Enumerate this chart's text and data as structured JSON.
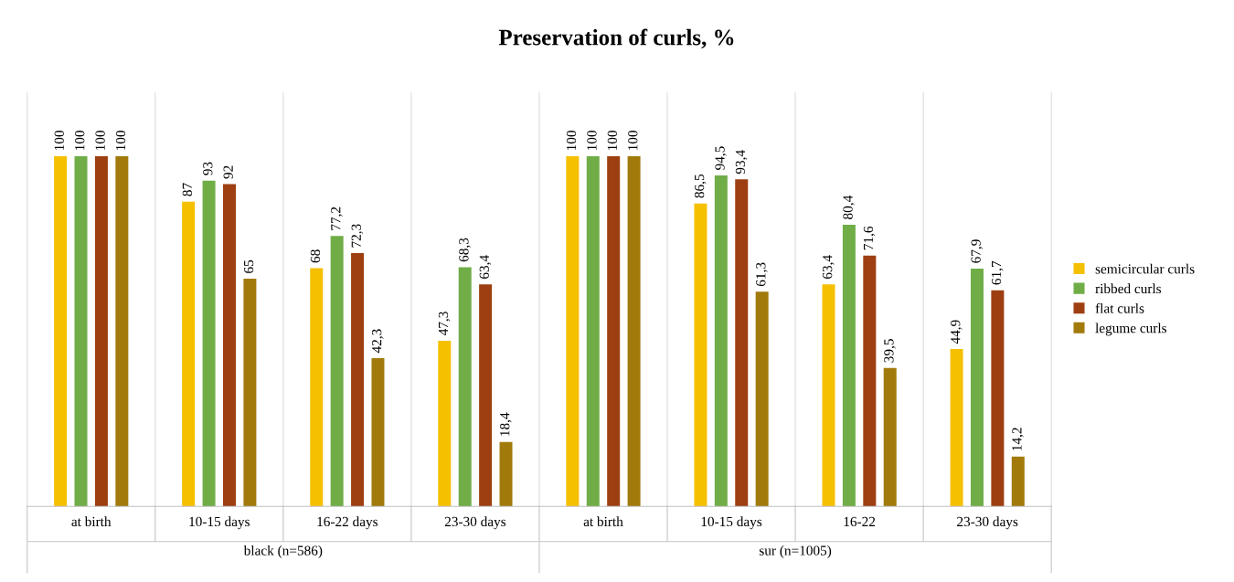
{
  "chart_data": {
    "type": "bar",
    "title": "Preservation of curls, %",
    "categories": [
      "at birth",
      "10-15 days",
      "16-22 days",
      "23-30 days",
      "at birth",
      "10-15 days",
      "16-22",
      "23-30 days"
    ],
    "series": [
      {
        "name": "semicircular curls",
        "color": "#f5c000",
        "values": [
          100,
          87,
          68,
          47.3,
          100,
          86.5,
          63.4,
          44.9
        ],
        "value_labels": [
          "100",
          "87",
          "68",
          "47,3",
          "100",
          "86,5",
          "63,4",
          "44,9"
        ]
      },
      {
        "name": "ribbed curls",
        "color": "#70ad47",
        "values": [
          100,
          93,
          77.2,
          68.3,
          100,
          94.5,
          80.4,
          67.9
        ],
        "value_labels": [
          "100",
          "93",
          "77,2",
          "68,3",
          "100",
          "94,5",
          "80,4",
          "67,9"
        ]
      },
      {
        "name": "flat curls",
        "color": "#9e3f12",
        "values": [
          100,
          92,
          72.3,
          63.4,
          100,
          93.4,
          71.6,
          61.7
        ],
        "value_labels": [
          "100",
          "92",
          "72,3",
          "63,4",
          "100",
          "93,4",
          "71,6",
          "61,7"
        ]
      },
      {
        "name": "legume curls",
        "color": "#a27a0c",
        "values": [
          100,
          65,
          42.3,
          18.4,
          100,
          61.3,
          39.5,
          14.2
        ],
        "value_labels": [
          "100",
          "65",
          "42,3",
          "18,4",
          "100",
          "61,3",
          "39,5",
          "14,2"
        ]
      }
    ],
    "annotations": [
      "black (n=586)",
      "sur (n=1005)"
    ],
    "legend": "right",
    "grid": false
  }
}
